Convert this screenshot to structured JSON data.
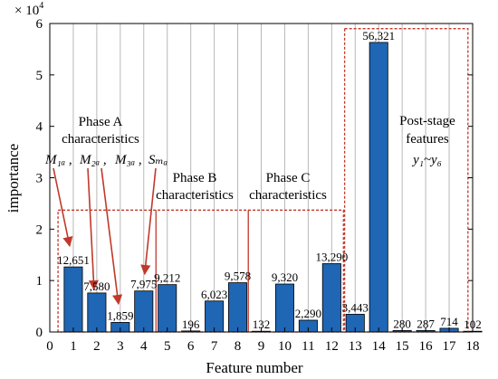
{
  "chart_data": {
    "type": "bar",
    "xlabel": "Feature number",
    "ylabel": "importance",
    "y_multiplier": "× 10",
    "y_multiplier_exponent": "4",
    "xlim": [
      0,
      18
    ],
    "ylim": [
      0,
      60000
    ],
    "x_ticks": [
      "0",
      "1",
      "2",
      "3",
      "4",
      "5",
      "6",
      "7",
      "8",
      "9",
      "10",
      "11",
      "12",
      "13",
      "14",
      "15",
      "16",
      "17",
      "18"
    ],
    "y_ticks": [
      {
        "value": 0,
        "label": "0"
      },
      {
        "value": 10000,
        "label": "1"
      },
      {
        "value": 20000,
        "label": "2"
      },
      {
        "value": 30000,
        "label": "3"
      },
      {
        "value": 40000,
        "label": "4"
      },
      {
        "value": 50000,
        "label": "5"
      },
      {
        "value": 60000,
        "label": "6"
      }
    ],
    "grid": "vertical",
    "bar_color": "#1f66b4",
    "categories": [
      1,
      2,
      3,
      4,
      5,
      6,
      7,
      8,
      9,
      10,
      11,
      12,
      13,
      14,
      15,
      16,
      17,
      18
    ],
    "values": [
      12651,
      7580,
      1859,
      7975,
      9212,
      196,
      6023,
      9578,
      132,
      9320,
      2290,
      13290,
      3443,
      56321,
      280,
      287,
      714,
      102
    ],
    "data_labels": [
      "12,651",
      "7,580",
      "1,859",
      "7,975",
      "9,212",
      "196",
      "6,023",
      "9,578",
      "132",
      "9,320",
      "2,290",
      "13,290",
      "3,443",
      "56,321",
      "280",
      "287",
      "714",
      "102"
    ],
    "annotations": {
      "phase_a": "Phase A characteristics",
      "phase_a_line1": "Phase A",
      "phase_a_line2": "characteristics",
      "phase_b_line1": "Phase B",
      "phase_b_line2": "characteristics",
      "phase_c_line1": "Phase C",
      "phase_c_line2": "characteristics",
      "post_line1": "Post-stage",
      "post_line2": "features",
      "post_range": "y₁~y₆",
      "m1a": "M₁ₐ ,",
      "m2a": "M₂ₐ ,",
      "m3a": "M₃ₐ ,",
      "sma": "Sₘₐ"
    },
    "box_color": "#c0392b"
  }
}
